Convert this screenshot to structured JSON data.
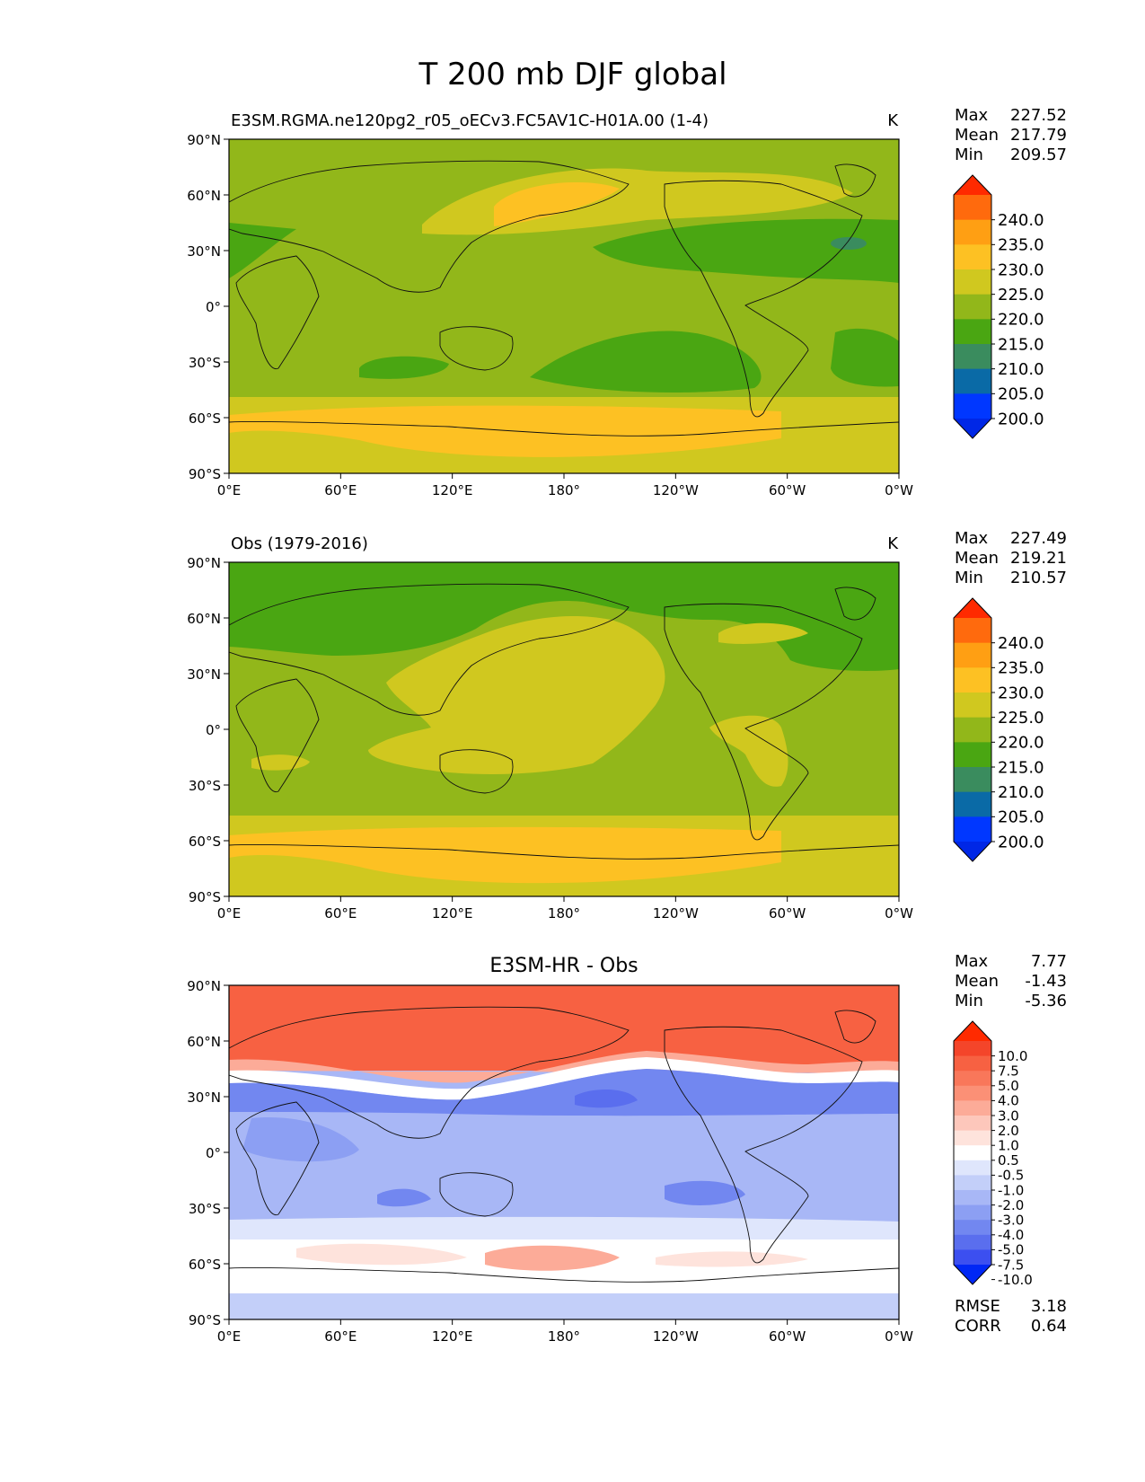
{
  "title": "T 200 mb DJF global",
  "lat_ticks": [
    "90°N",
    "60°N",
    "30°N",
    "0°",
    "30°S",
    "60°S",
    "90°S"
  ],
  "lon_ticks": [
    "0°E",
    "60°E",
    "120°E",
    "180°",
    "120°W",
    "60°W",
    "0°W"
  ],
  "panels": [
    {
      "title_left": "E3SM.RGMA.ne120pg2_r05_oECv3.FC5AV1C-H01A.00 (1-4)",
      "title_center": "",
      "units": "K",
      "stats": [
        {
          "label": "Max",
          "value": "227.52"
        },
        {
          "label": "Mean",
          "value": "217.79"
        },
        {
          "label": "Min",
          "value": "209.57"
        }
      ],
      "colorbar": {
        "labels": [
          "240.0",
          "235.0",
          "230.0",
          "225.0",
          "220.0",
          "215.0",
          "210.0",
          "205.0",
          "200.0"
        ],
        "colors": [
          "#ff2a00",
          "#ff6a0d",
          "#ff9f13",
          "#fdc123",
          "#d0c81f",
          "#92b71a",
          "#4aa612",
          "#3a8c5e",
          "#0a6aa6",
          "#0037ff",
          "#0027e6"
        ]
      },
      "footer": []
    },
    {
      "title_left": "Obs (1979-2016)",
      "title_center": "",
      "units": "K",
      "stats": [
        {
          "label": "Max",
          "value": "227.49"
        },
        {
          "label": "Mean",
          "value": "219.21"
        },
        {
          "label": "Min",
          "value": "210.57"
        }
      ],
      "colorbar": {
        "labels": [
          "240.0",
          "235.0",
          "230.0",
          "225.0",
          "220.0",
          "215.0",
          "210.0",
          "205.0",
          "200.0"
        ],
        "colors": [
          "#ff2a00",
          "#ff6a0d",
          "#ff9f13",
          "#fdc123",
          "#d0c81f",
          "#92b71a",
          "#4aa612",
          "#3a8c5e",
          "#0a6aa6",
          "#0037ff",
          "#0027e6"
        ]
      },
      "footer": []
    },
    {
      "title_left": "",
      "title_center": "E3SM-HR - Obs",
      "units": "",
      "stats": [
        {
          "label": "Max",
          "value": "7.77"
        },
        {
          "label": "Mean",
          "value": "-1.43"
        },
        {
          "label": "Min",
          "value": "-5.36"
        }
      ],
      "colorbar": {
        "labels": [
          "10.0",
          "7.5",
          "5.0",
          "4.0",
          "3.0",
          "2.0",
          "1.0",
          "0.5",
          "-0.5",
          "-1.0",
          "-2.0",
          "-3.0",
          "-4.0",
          "-5.0",
          "-7.5",
          "-10.0"
        ],
        "colors": [
          "#ff2a00",
          "#f4452a",
          "#f76142",
          "#f9775a",
          "#fb9076",
          "#fcab98",
          "#fdc7bb",
          "#fee3dc",
          "#ffffff",
          "#dfe6fc",
          "#c3cff9",
          "#a8b7f6",
          "#8c9ff3",
          "#7287f0",
          "#5a6eee",
          "#3c4ff0",
          "#0027f5"
        ]
      },
      "footer": [
        {
          "label": "RMSE",
          "value": "3.18"
        },
        {
          "label": "CORR",
          "value": "0.64"
        }
      ]
    }
  ],
  "colors": {
    "model_bg": "#92b71a",
    "obs_bg": "#92b71a",
    "diff_bg": "#a8b7f6"
  }
}
